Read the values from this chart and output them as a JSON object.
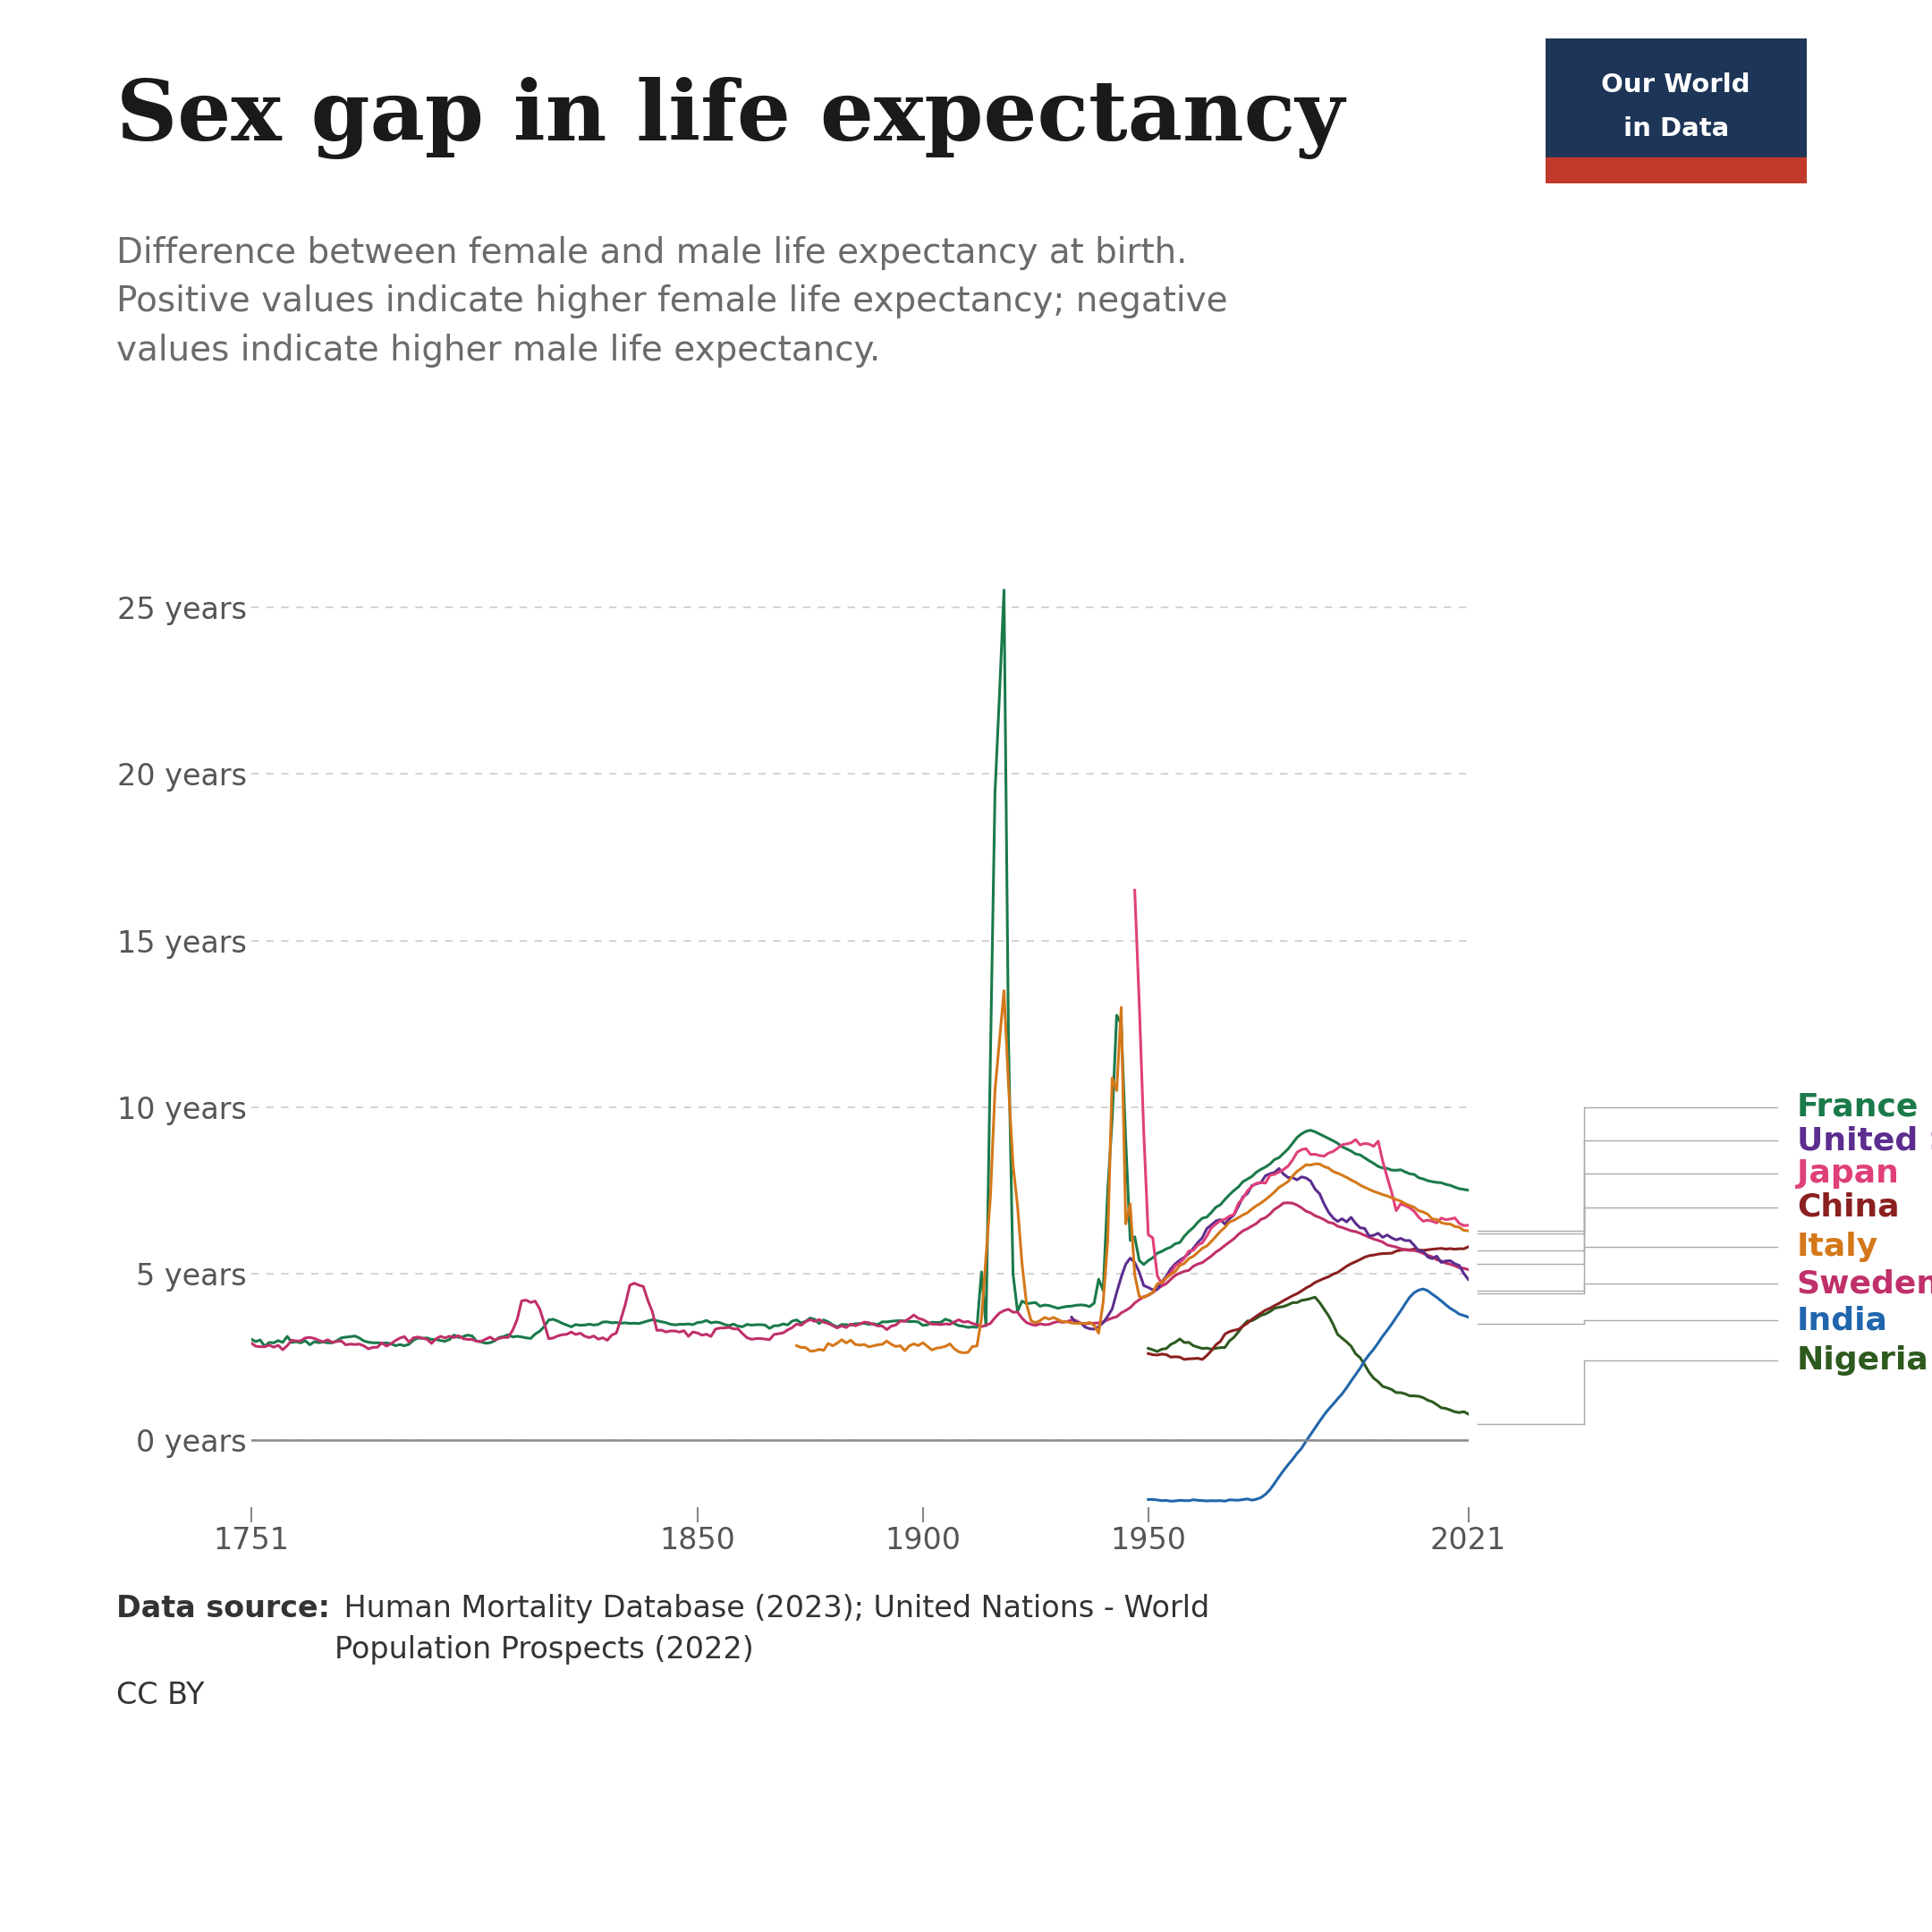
{
  "title": "Sex gap in life expectancy",
  "subtitle_line1": "Difference between female and male life expectancy at birth.",
  "subtitle_line2": "Positive values indicate higher female life expectancy; negative",
  "subtitle_line3": "values indicate higher male life expectancy.",
  "source_bold": "Data source:",
  "source_rest": " Human Mortality Database (2023); United Nations - World\nPopulation Prospects (2022)",
  "cc_text": "CC BY",
  "owid_logo_text1": "Our World",
  "owid_logo_text2": "in Data",
  "title_color": "#1a1a1a",
  "subtitle_color": "#6b6b6b",
  "background_color": "#ffffff",
  "logo_bg_color": "#1d3557",
  "logo_red_color": "#c0392b",
  "countries": [
    "France",
    "United States",
    "Japan",
    "China",
    "Italy",
    "Sweden",
    "India",
    "Nigeria"
  ],
  "colors": {
    "France": "#1a7a4a",
    "United States": "#5b2d8e",
    "Japan": "#e0407a",
    "China": "#8b2020",
    "Italy": "#d4781a",
    "Sweden": "#c0306a",
    "India": "#2166ac",
    "Nigeria": "#2d5a1e"
  },
  "ylim": [
    -2,
    27
  ],
  "yticks": [
    0,
    5,
    10,
    15,
    20,
    25
  ],
  "ytick_labels": [
    "0 years",
    "5 years",
    "10 years",
    "15 years",
    "20 years",
    "25 years"
  ],
  "xticks": [
    1751,
    1850,
    1900,
    1950,
    2021
  ],
  "xmin": 1751,
  "xmax": 2021
}
